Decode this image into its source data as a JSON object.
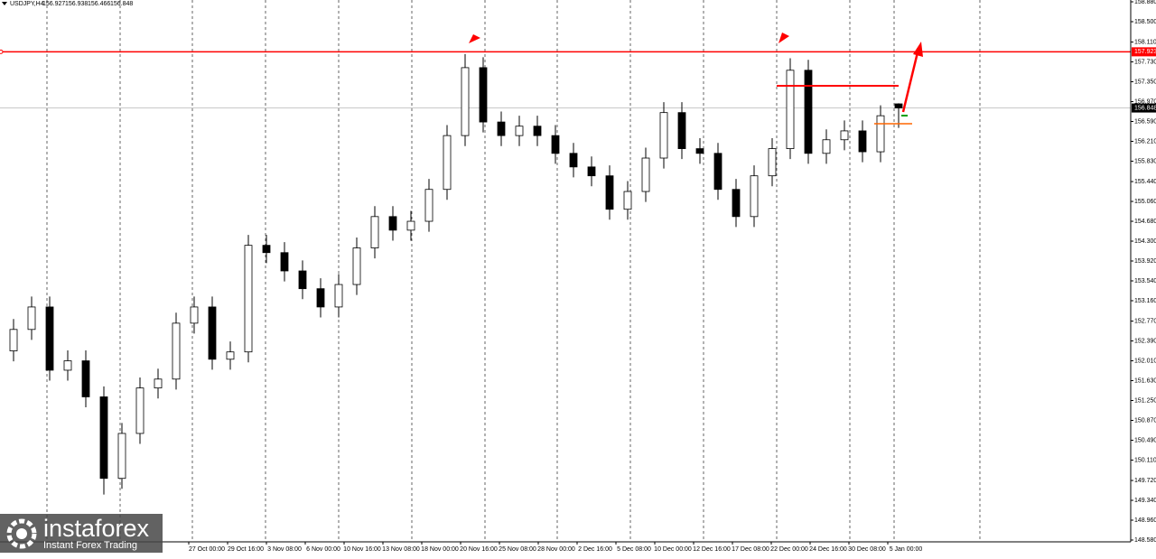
{
  "chart_data": {
    "type": "candlestick",
    "symbol": "USDJPY,H4",
    "open": [
      152.2,
      152.61,
      153.04,
      151.83,
      152.01,
      151.32,
      149.76,
      150.62,
      151.49,
      151.66,
      152.73,
      153.04,
      152.04,
      152.18,
      154.22,
      154.08,
      153.73,
      153.39,
      153.04,
      153.47,
      154.17,
      154.77,
      154.51,
      154.68,
      155.29,
      156.32,
      157.62,
      156.58,
      156.32,
      156.5,
      156.32,
      155.98,
      155.72,
      155.55,
      154.91,
      155.25,
      155.89,
      156.76,
      156.07,
      155.98,
      155.29,
      154.77,
      155.55,
      156.07,
      157.57,
      155.98,
      156.24,
      156.41,
      156.01,
      156.927
    ],
    "high": [
      152.81,
      153.24,
      153.24,
      152.21,
      152.21,
      151.52,
      150.82,
      151.69,
      151.86,
      152.93,
      153.24,
      153.24,
      152.38,
      154.42,
      154.42,
      154.28,
      153.93,
      153.59,
      153.67,
      154.37,
      154.97,
      154.97,
      154.88,
      155.49,
      156.52,
      157.88,
      157.82,
      156.78,
      156.7,
      156.7,
      156.52,
      156.18,
      155.92,
      155.75,
      155.45,
      156.09,
      156.96,
      156.96,
      156.27,
      156.18,
      155.49,
      155.75,
      156.27,
      157.8,
      157.77,
      156.44,
      156.61,
      156.61,
      156.9,
      156.938
    ],
    "low": [
      152.0,
      152.41,
      151.63,
      151.63,
      151.12,
      149.45,
      149.56,
      150.42,
      151.29,
      151.46,
      152.53,
      151.84,
      151.84,
      151.98,
      153.88,
      153.53,
      153.19,
      152.84,
      152.84,
      153.27,
      153.97,
      154.31,
      154.31,
      154.48,
      155.09,
      156.12,
      156.38,
      156.12,
      156.12,
      156.12,
      155.78,
      155.52,
      155.35,
      154.71,
      154.71,
      155.05,
      155.69,
      155.87,
      155.78,
      155.09,
      154.57,
      154.57,
      155.35,
      155.87,
      155.78,
      155.78,
      156.04,
      155.81,
      155.81,
      156.466
    ],
    "close": [
      152.61,
      153.04,
      151.83,
      152.01,
      151.32,
      149.76,
      150.62,
      151.49,
      151.66,
      152.73,
      153.04,
      152.04,
      152.18,
      154.22,
      154.08,
      153.73,
      153.39,
      153.04,
      153.47,
      154.17,
      154.77,
      154.51,
      154.68,
      155.29,
      156.32,
      157.62,
      156.58,
      156.32,
      156.5,
      156.32,
      155.98,
      155.72,
      155.55,
      154.91,
      155.25,
      155.89,
      156.76,
      156.07,
      155.98,
      155.29,
      154.77,
      155.55,
      156.07,
      157.57,
      155.98,
      156.24,
      156.41,
      156.01,
      156.7,
      156.848
    ],
    "x_labels": [
      "27 Oct 00:00",
      "29 Oct 16:00",
      "3 Nov 08:00",
      "6 Nov 00:00",
      "10 Nov 16:00",
      "13 Nov 08:00",
      "18 Nov 00:00",
      "20 Nov 16:00",
      "25 Nov 08:00",
      "28 Nov 00:00",
      "2 Dec 16:00",
      "5 Dec 08:00",
      "10 Dec 00:00",
      "12 Dec 16:00",
      "17 Dec 08:00",
      "22 Dec 00:00",
      "24 Dec 16:00",
      "30 Dec 08:00",
      "5 Jan 00:00"
    ],
    "ylim": [
      148.58,
      158.88
    ],
    "yticks": [
      {
        "value": 158.88,
        "label": "158.880"
      },
      {
        "value": 158.5,
        "label": "158.500"
      },
      {
        "value": 158.11,
        "label": "158.110"
      },
      {
        "value": 157.73,
        "label": "157.730"
      },
      {
        "value": 157.35,
        "label": "157.350"
      },
      {
        "value": 156.97,
        "label": "156.970"
      },
      {
        "value": 156.59,
        "label": "156.590"
      },
      {
        "value": 156.21,
        "label": "156.210"
      },
      {
        "value": 155.83,
        "label": "155.830"
      },
      {
        "value": 155.44,
        "label": "155.440"
      },
      {
        "value": 155.06,
        "label": "155.060"
      },
      {
        "value": 154.68,
        "label": "154.680"
      },
      {
        "value": 154.3,
        "label": "154.300"
      },
      {
        "value": 153.92,
        "label": "153.920"
      },
      {
        "value": 153.54,
        "label": "153.540"
      },
      {
        "value": 153.16,
        "label": "153.160"
      },
      {
        "value": 152.77,
        "label": "152.770"
      },
      {
        "value": 152.39,
        "label": "152.390"
      },
      {
        "value": 152.01,
        "label": "152.010"
      },
      {
        "value": 151.63,
        "label": "151.630"
      },
      {
        "value": 151.25,
        "label": "151.250"
      },
      {
        "value": 150.87,
        "label": "150.870"
      },
      {
        "value": 150.49,
        "label": "150.490"
      },
      {
        "value": 150.11,
        "label": "150.110"
      },
      {
        "value": 149.72,
        "label": "149.720"
      },
      {
        "value": 149.34,
        "label": "149.340"
      },
      {
        "value": 148.96,
        "label": "148.960"
      },
      {
        "value": 148.58,
        "label": "148.580"
      }
    ],
    "price_line": {
      "value": 157.923,
      "label": "157.923",
      "color": "#ff0000"
    },
    "current_price": {
      "value": 156.848,
      "label": "156.848"
    }
  },
  "logo": {
    "name": "instaforex",
    "tagline": "Instant Forex Trading"
  }
}
